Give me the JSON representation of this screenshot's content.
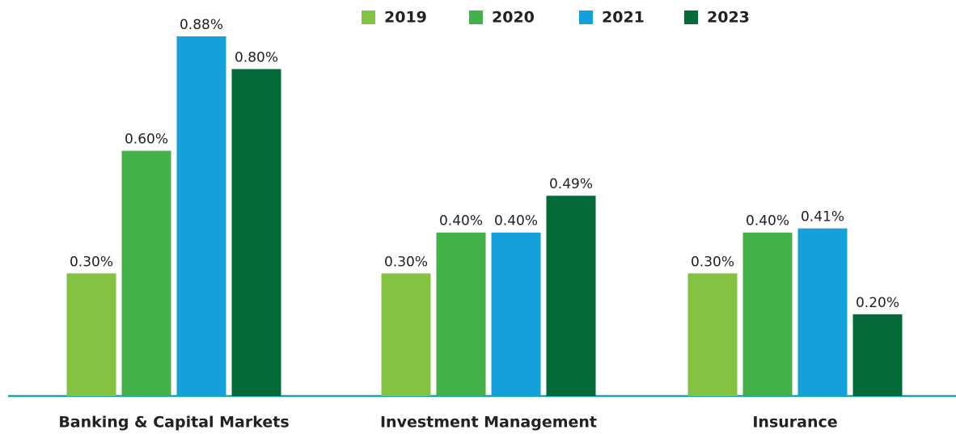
{
  "chart_data": {
    "type": "bar",
    "categories": [
      "Banking & Capital Markets",
      "Investment Management",
      "Insurance"
    ],
    "series": [
      {
        "name": "2019",
        "color": "#84c341",
        "values": [
          0.3,
          0.3,
          0.3
        ],
        "value_labels": [
          "0.30%",
          "0.30%",
          "0.30%"
        ]
      },
      {
        "name": "2020",
        "color": "#43b049",
        "values": [
          0.6,
          0.4,
          0.4
        ],
        "value_labels": [
          "0.60%",
          "0.40%",
          "0.40%"
        ]
      },
      {
        "name": "2021",
        "color": "#13a0db",
        "values": [
          0.88,
          0.4,
          0.41
        ],
        "value_labels": [
          "0.88%",
          "0.40%",
          "0.41%"
        ]
      },
      {
        "name": "2023",
        "color": "#046a38",
        "values": [
          0.8,
          0.49,
          0.2
        ],
        "value_labels": [
          "0.80%",
          "0.49%",
          "0.20%"
        ]
      }
    ]
  }
}
